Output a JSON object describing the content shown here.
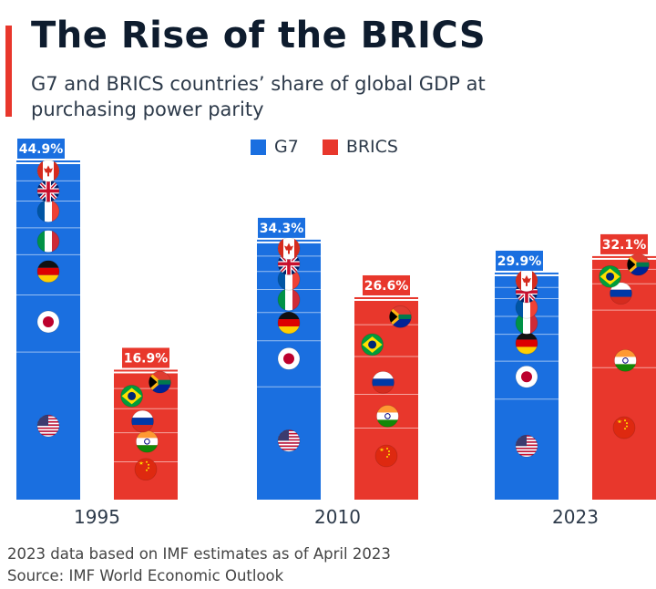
{
  "title": "The Rise of the BRICS",
  "subtitle": "G7 and BRICS countries’ share of global GDP at purchasing power parity",
  "legend": [
    {
      "label": "G7",
      "color": "#1a6fe0"
    },
    {
      "label": "BRICS",
      "color": "#e8372c"
    }
  ],
  "colors": {
    "g7": "#1a6fe0",
    "brics": "#e8372c",
    "g7_label_bg": "#1a6fe0",
    "brics_label_bg": "#e8372c"
  },
  "chart_data": {
    "type": "bar",
    "categories": [
      "1995",
      "2010",
      "2023"
    ],
    "series": [
      {
        "name": "G7",
        "values": [
          44.9,
          34.3,
          29.9
        ],
        "labels": [
          "44.9%",
          "34.3%",
          "29.9%"
        ]
      },
      {
        "name": "BRICS",
        "values": [
          16.9,
          26.6,
          32.1
        ],
        "labels": [
          "16.9%",
          "26.6%",
          "32.1%"
        ]
      }
    ],
    "stacks": {
      "G7": [
        "flag-usa-icon",
        "flag-japan-icon",
        "flag-germany-icon",
        "flag-italy-icon",
        "flag-france-icon",
        "flag-uk-icon",
        "flag-canada-icon"
      ],
      "BRICS": [
        "flag-china-icon",
        "flag-india-icon",
        "flag-russia-icon",
        "flag-brazil-icon",
        "flag-south-africa-icon"
      ]
    },
    "title": "The Rise of the BRICS",
    "xlabel": "",
    "ylabel": ""
  },
  "footer": {
    "note": "2023 data based on IMF estimates as of April 2023",
    "source": "Source: IMF World Economic Outlook"
  }
}
